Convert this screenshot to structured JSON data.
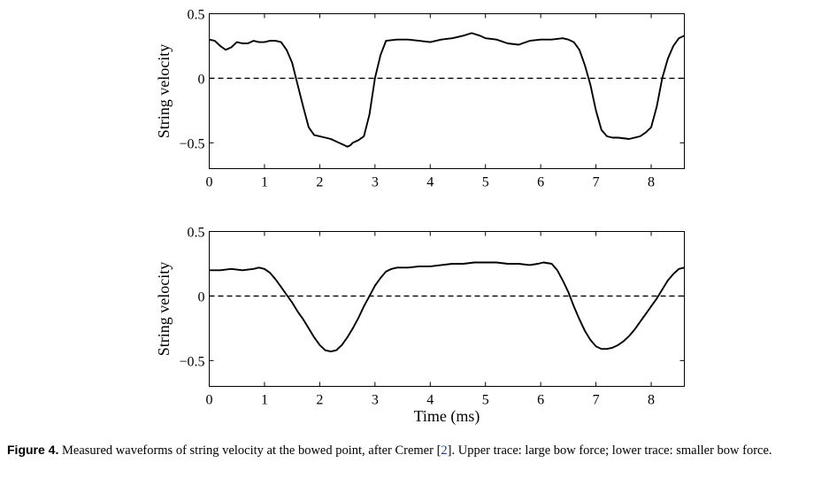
{
  "chart_data": [
    {
      "type": "line",
      "title": "",
      "xlabel": "",
      "ylabel": "String velocity",
      "xlim": [
        0,
        8.6
      ],
      "ylim": [
        -0.7,
        0.5
      ],
      "xticks": [
        0,
        1,
        2,
        3,
        4,
        5,
        6,
        7,
        8
      ],
      "xtick_labels": [
        "0",
        "1",
        "2",
        "3",
        "4",
        "5",
        "6",
        "7",
        "8"
      ],
      "yticks": [
        -0.5,
        0,
        0.5
      ],
      "ytick_labels": [
        "−0.5",
        "0",
        "0.5"
      ],
      "grid": false,
      "series": [
        {
          "style": "solid",
          "x": [
            0,
            0.1,
            0.2,
            0.3,
            0.4,
            0.5,
            0.6,
            0.7,
            0.8,
            0.9,
            1.0,
            1.1,
            1.2,
            1.3,
            1.4,
            1.5,
            1.6,
            1.7,
            1.8,
            1.9,
            2.0,
            2.2,
            2.3,
            2.4,
            2.5,
            2.55,
            2.6,
            2.7,
            2.8,
            2.9,
            3.0,
            3.1,
            3.2,
            3.4,
            3.6,
            3.8,
            4.0,
            4.2,
            4.4,
            4.6,
            4.75,
            4.9,
            5.0,
            5.2,
            5.4,
            5.6,
            5.8,
            6.0,
            6.2,
            6.4,
            6.5,
            6.6,
            6.7,
            6.8,
            6.9,
            7.0,
            7.1,
            7.2,
            7.3,
            7.4,
            7.6,
            7.8,
            7.9,
            8.0,
            8.1,
            8.2,
            8.3,
            8.4,
            8.5,
            8.6
          ],
          "y": [
            0.3,
            0.29,
            0.25,
            0.22,
            0.24,
            0.28,
            0.27,
            0.27,
            0.29,
            0.28,
            0.28,
            0.29,
            0.29,
            0.28,
            0.22,
            0.12,
            -0.05,
            -0.22,
            -0.38,
            -0.44,
            -0.45,
            -0.47,
            -0.49,
            -0.51,
            -0.53,
            -0.52,
            -0.5,
            -0.48,
            -0.45,
            -0.28,
            0.0,
            0.18,
            0.29,
            0.3,
            0.3,
            0.29,
            0.28,
            0.3,
            0.31,
            0.33,
            0.35,
            0.33,
            0.31,
            0.3,
            0.27,
            0.26,
            0.29,
            0.3,
            0.3,
            0.31,
            0.3,
            0.28,
            0.22,
            0.1,
            -0.05,
            -0.25,
            -0.4,
            -0.45,
            -0.46,
            -0.46,
            -0.47,
            -0.45,
            -0.42,
            -0.38,
            -0.22,
            0.0,
            0.15,
            0.25,
            0.31,
            0.33
          ]
        },
        {
          "style": "dashed",
          "x": [
            0,
            8.6
          ],
          "y": [
            0,
            0
          ]
        }
      ]
    },
    {
      "type": "line",
      "title": "",
      "xlabel": "Time (ms)",
      "ylabel": "String velocity",
      "xlim": [
        0,
        8.6
      ],
      "ylim": [
        -0.7,
        0.5
      ],
      "xticks": [
        0,
        1,
        2,
        3,
        4,
        5,
        6,
        7,
        8
      ],
      "xtick_labels": [
        "0",
        "1",
        "2",
        "3",
        "4",
        "5",
        "6",
        "7",
        "8"
      ],
      "yticks": [
        -0.5,
        0,
        0.5
      ],
      "ytick_labels": [
        "−0.5",
        "0",
        "0.5"
      ],
      "grid": false,
      "series": [
        {
          "style": "solid",
          "x": [
            0,
            0.2,
            0.4,
            0.6,
            0.8,
            0.9,
            1.0,
            1.1,
            1.2,
            1.3,
            1.4,
            1.5,
            1.6,
            1.7,
            1.8,
            1.9,
            2.0,
            2.1,
            2.2,
            2.3,
            2.4,
            2.5,
            2.6,
            2.7,
            2.8,
            2.9,
            3.0,
            3.1,
            3.2,
            3.3,
            3.4,
            3.6,
            3.8,
            4.0,
            4.2,
            4.4,
            4.6,
            4.8,
            5.0,
            5.2,
            5.4,
            5.6,
            5.8,
            5.95,
            6.05,
            6.2,
            6.3,
            6.4,
            6.5,
            6.6,
            6.7,
            6.8,
            6.9,
            7.0,
            7.1,
            7.2,
            7.3,
            7.4,
            7.5,
            7.6,
            7.7,
            7.8,
            7.9,
            8.0,
            8.1,
            8.2,
            8.3,
            8.4,
            8.5,
            8.6
          ],
          "y": [
            0.2,
            0.2,
            0.21,
            0.2,
            0.21,
            0.22,
            0.21,
            0.18,
            0.13,
            0.07,
            0.01,
            -0.05,
            -0.12,
            -0.18,
            -0.25,
            -0.32,
            -0.38,
            -0.42,
            -0.43,
            -0.42,
            -0.38,
            -0.32,
            -0.25,
            -0.17,
            -0.08,
            0.0,
            0.08,
            0.14,
            0.19,
            0.21,
            0.22,
            0.22,
            0.23,
            0.23,
            0.24,
            0.25,
            0.25,
            0.26,
            0.26,
            0.26,
            0.25,
            0.25,
            0.24,
            0.25,
            0.26,
            0.25,
            0.2,
            0.12,
            0.03,
            -0.08,
            -0.18,
            -0.27,
            -0.34,
            -0.39,
            -0.41,
            -0.41,
            -0.4,
            -0.38,
            -0.35,
            -0.31,
            -0.26,
            -0.2,
            -0.14,
            -0.08,
            -0.02,
            0.05,
            0.12,
            0.17,
            0.21,
            0.22
          ]
        },
        {
          "style": "dashed",
          "x": [
            0,
            8.6
          ],
          "y": [
            0,
            0
          ]
        }
      ]
    }
  ],
  "caption": {
    "label": "Figure 4.",
    "text_before_ref": "Measured waveforms of string velocity at the bowed point, after Cremer [",
    "ref": "2",
    "text_after_ref": "]. Upper trace: large bow force; lower trace: smaller bow force."
  }
}
